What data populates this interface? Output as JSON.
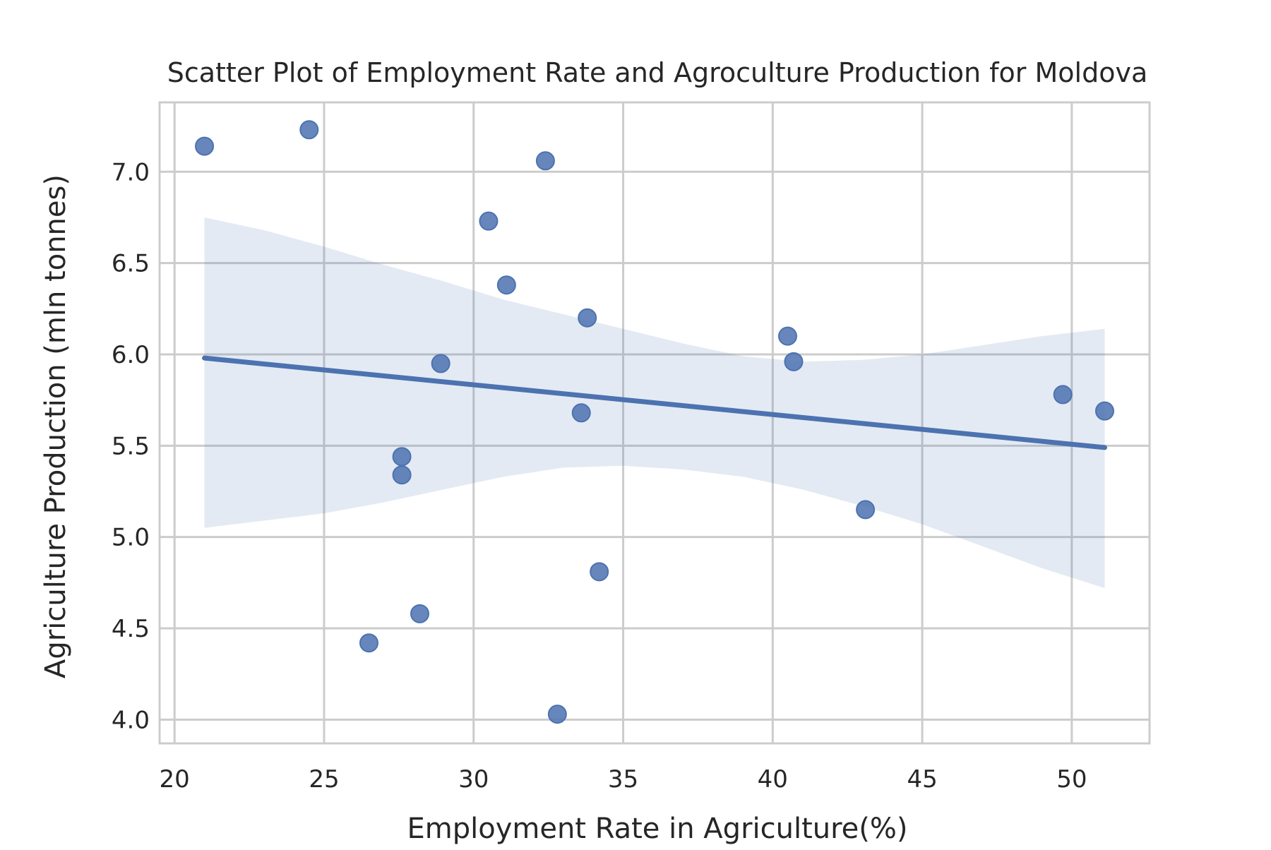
{
  "chart_data": {
    "type": "scatter",
    "title": "Scatter Plot of Employment Rate and Agroculture Production for Moldova",
    "xlabel": "Employment Rate in Agriculture(%)",
    "ylabel": "Agriculture Production (mln tonnes)",
    "xlim": [
      19.5,
      52.6
    ],
    "ylim": [
      3.87,
      7.38
    ],
    "xticks": [
      20,
      25,
      30,
      35,
      40,
      45,
      50
    ],
    "xtick_labels": [
      "20",
      "25",
      "30",
      "35",
      "40",
      "45",
      "50"
    ],
    "yticks": [
      4.0,
      4.5,
      5.0,
      5.5,
      6.0,
      6.5,
      7.0
    ],
    "ytick_labels": [
      "4.0",
      "4.5",
      "5.0",
      "5.5",
      "6.0",
      "6.5",
      "7.0"
    ],
    "grid": true,
    "legend": "none",
    "point_color": "#4c72b0",
    "band_color": "#4c72b0",
    "points": [
      {
        "x": 21.0,
        "y": 7.14
      },
      {
        "x": 24.5,
        "y": 7.23
      },
      {
        "x": 26.5,
        "y": 4.42
      },
      {
        "x": 27.6,
        "y": 5.44
      },
      {
        "x": 27.6,
        "y": 5.34
      },
      {
        "x": 28.2,
        "y": 4.58
      },
      {
        "x": 28.9,
        "y": 5.95
      },
      {
        "x": 30.5,
        "y": 6.73
      },
      {
        "x": 31.1,
        "y": 6.38
      },
      {
        "x": 32.4,
        "y": 7.06
      },
      {
        "x": 32.8,
        "y": 4.03
      },
      {
        "x": 33.6,
        "y": 5.68
      },
      {
        "x": 33.8,
        "y": 6.2
      },
      {
        "x": 34.2,
        "y": 4.81
      },
      {
        "x": 40.5,
        "y": 6.1
      },
      {
        "x": 40.7,
        "y": 5.96
      },
      {
        "x": 43.1,
        "y": 5.15
      },
      {
        "x": 49.7,
        "y": 5.78
      },
      {
        "x": 51.1,
        "y": 5.69
      }
    ],
    "regression": {
      "x": [
        21.0,
        51.1
      ],
      "y": [
        5.98,
        5.49
      ]
    },
    "confidence_band": {
      "x": [
        21.0,
        23.0,
        25.0,
        27.0,
        29.0,
        31.0,
        33.0,
        35.0,
        37.0,
        39.0,
        41.0,
        43.0,
        45.0,
        47.0,
        49.0,
        51.1
      ],
      "upper": [
        6.75,
        6.68,
        6.59,
        6.49,
        6.4,
        6.3,
        6.22,
        6.14,
        6.06,
        5.99,
        5.96,
        5.97,
        6.0,
        6.05,
        6.1,
        6.14
      ],
      "lower": [
        5.05,
        5.09,
        5.13,
        5.19,
        5.26,
        5.33,
        5.38,
        5.39,
        5.37,
        5.33,
        5.26,
        5.17,
        5.07,
        4.95,
        4.83,
        4.72
      ]
    }
  }
}
